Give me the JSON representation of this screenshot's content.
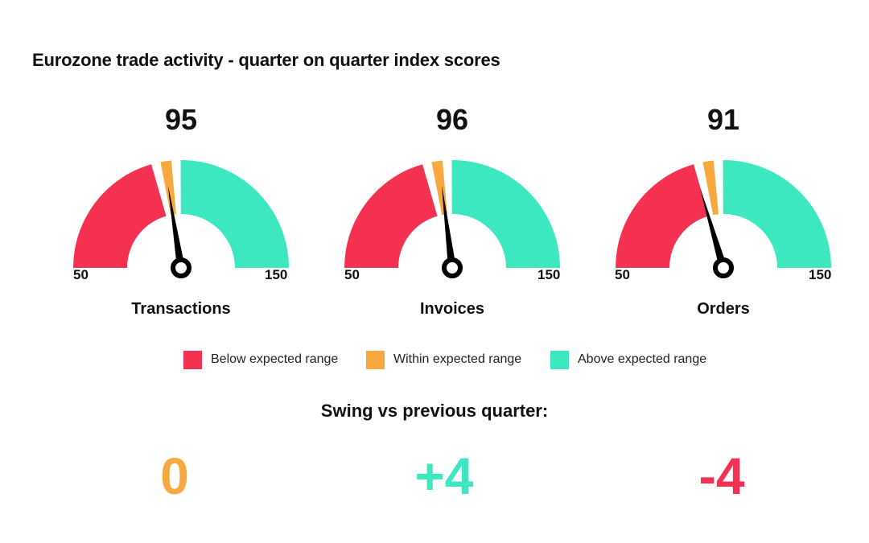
{
  "title": "Eurozone trade activity - quarter on quarter index scores",
  "colors": {
    "below": "#F53152",
    "within": "#F7A83E",
    "above": "#3DE8C1",
    "needle": "#000000"
  },
  "chart_data": {
    "type": "gauge",
    "min": 50,
    "max": 150,
    "bands": [
      {
        "label": "Below expected range",
        "from": 50,
        "to": 92
      },
      {
        "label": "Within expected range",
        "from": 93,
        "to": 98
      },
      {
        "label": "Above expected range",
        "from": 99,
        "to": 150
      }
    ],
    "gauges": [
      {
        "name": "Transactions",
        "value": 95,
        "value_label": "95",
        "min_label": "50",
        "max_label": "150"
      },
      {
        "name": "Invoices",
        "value": 96,
        "value_label": "96",
        "min_label": "50",
        "max_label": "150"
      },
      {
        "name": "Orders",
        "value": 91,
        "value_label": "91",
        "min_label": "50",
        "max_label": "150"
      }
    ]
  },
  "legend": [
    {
      "label": "Below expected range",
      "color_key": "below"
    },
    {
      "label": "Within expected range",
      "color_key": "within"
    },
    {
      "label": "Above expected range",
      "color_key": "above"
    }
  ],
  "swing": {
    "title": "Swing vs previous quarter:",
    "values": [
      {
        "label": "0",
        "color_key": "within"
      },
      {
        "label": "+4",
        "color_key": "above"
      },
      {
        "label": "-4",
        "color_key": "below"
      }
    ]
  }
}
